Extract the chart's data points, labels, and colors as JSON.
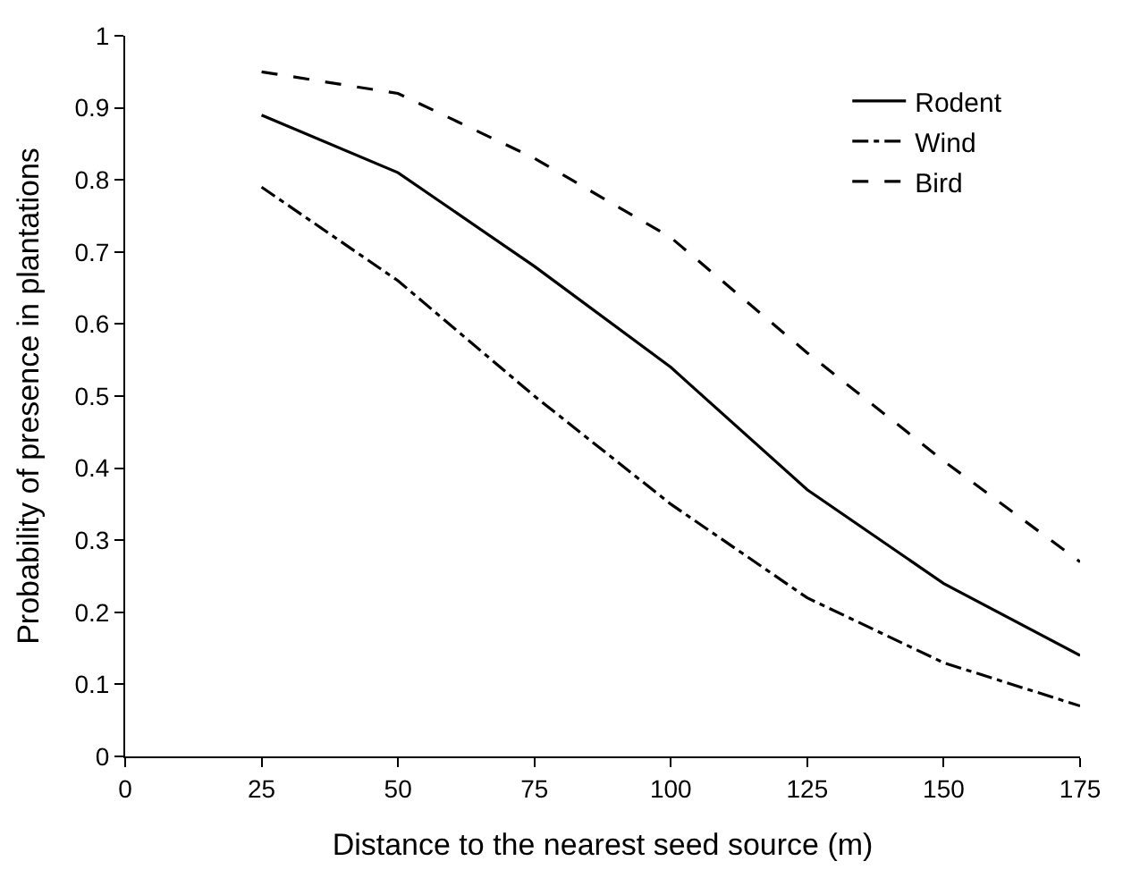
{
  "chart_data": {
    "type": "line",
    "xlabel": "Distance to the nearest seed source (m)",
    "ylabel": "Probability of presence in plantations",
    "x": [
      25,
      50,
      75,
      100,
      125,
      150,
      175
    ],
    "series": [
      {
        "name": "Rodent",
        "color": "#000000",
        "line_style": "solid",
        "values": [
          0.89,
          0.81,
          0.68,
          0.54,
          0.37,
          0.24,
          0.14
        ]
      },
      {
        "name": "Wind",
        "color": "#000000",
        "line_style": "dashdot",
        "values": [
          0.79,
          0.66,
          0.5,
          0.35,
          0.22,
          0.13,
          0.07
        ]
      },
      {
        "name": "Bird",
        "color": "#000000",
        "line_style": "dashed",
        "values": [
          0.95,
          0.92,
          0.83,
          0.72,
          0.56,
          0.41,
          0.27
        ]
      }
    ],
    "xlim": [
      0,
      175
    ],
    "xticks": [
      0,
      25,
      50,
      75,
      100,
      125,
      150,
      175
    ],
    "ylim": [
      0,
      1
    ],
    "yticks": [
      0,
      0.1,
      0.2,
      0.3,
      0.4,
      0.5,
      0.6,
      0.7,
      0.8,
      0.9,
      1
    ],
    "legend": "top right",
    "marker": "none"
  }
}
